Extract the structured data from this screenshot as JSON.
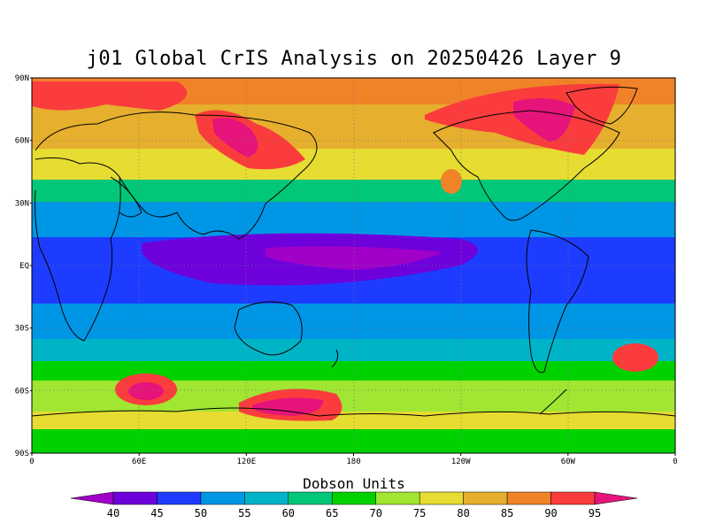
{
  "title": "j01 Global CrIS Analysis on 20250426 Layer 9",
  "map": {
    "projection": "cylindrical",
    "lon_range": [
      0,
      360
    ],
    "lat_range": [
      -90,
      90
    ],
    "grid": true,
    "lat_labels": [
      "90N",
      "60N",
      "30N",
      "EQ",
      "30S",
      "60S",
      "90S"
    ],
    "lat_values": [
      90,
      60,
      30,
      0,
      -30,
      -60,
      -90
    ],
    "lon_labels": [
      "0",
      "60E",
      "120E",
      "180",
      "120W",
      "60W",
      "0"
    ],
    "lon_values": [
      0,
      60,
      120,
      180,
      240,
      300,
      360
    ]
  },
  "colorbar": {
    "title": "Dobson Units",
    "labels": [
      "40",
      "45",
      "50",
      "55",
      "60",
      "65",
      "70",
      "75",
      "80",
      "85",
      "90",
      "95"
    ],
    "colors": [
      "#a000c8",
      "#6e00dc",
      "#1e3cff",
      "#0096e6",
      "#00b4c8",
      "#00c878",
      "#00d200",
      "#a0e632",
      "#e6dc32",
      "#e6af2d",
      "#f08228",
      "#fa3c3c",
      "#e6147a"
    ]
  }
}
